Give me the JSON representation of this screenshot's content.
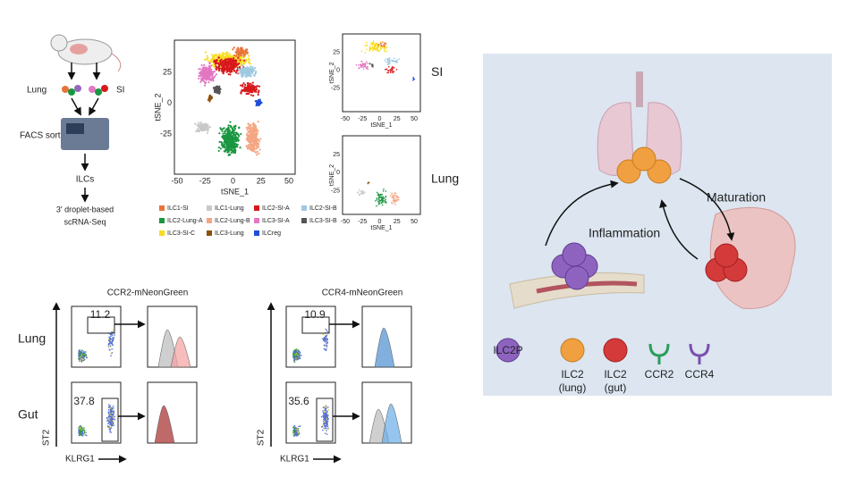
{
  "workflow": {
    "organs": [
      "Lung",
      "SI"
    ],
    "sort": "FACS sort",
    "cells": "ILCs",
    "method": [
      "3' droplet-based",
      "scRNA-Seq"
    ]
  },
  "tsne_main": {
    "x_label": "tSNE_1",
    "y_label": "tSNE_2",
    "x_ticks": [
      "-50",
      "-25",
      "0",
      "25",
      "50"
    ],
    "y_ticks": [
      "25",
      "0",
      "-25"
    ]
  },
  "tsne_si": {
    "label": "SI",
    "x_label": "tSNE_1",
    "y_label": "tSNE_2",
    "x_ticks": [
      "-50",
      "-25",
      "0",
      "25",
      "50"
    ],
    "y_ticks": [
      "25",
      "0",
      "-25"
    ]
  },
  "tsne_lung": {
    "label": "Lung",
    "x_label": "tSNE_1",
    "y_label": "tSNE_2",
    "x_ticks": [
      "-50",
      "-25",
      "0",
      "25",
      "50"
    ],
    "y_ticks": [
      "25",
      "0",
      "-25"
    ]
  },
  "legend": [
    {
      "name": "ILC1-SI",
      "color": "#e8743b"
    },
    {
      "name": "ILC1-Lung",
      "color": "#c8c8c8"
    },
    {
      "name": "ILC2-SI-A",
      "color": "#d7191c"
    },
    {
      "name": "ILC2-SI-B",
      "color": "#9ecae1"
    },
    {
      "name": "ILC2-Lung-A",
      "color": "#1a9641"
    },
    {
      "name": "ILC2-Lung-B",
      "color": "#f4a582"
    },
    {
      "name": "ILC3-SI-A",
      "color": "#e377c2"
    },
    {
      "name": "ILC3-SI-B",
      "color": "#555555"
    },
    {
      "name": "ILC3-SI-C",
      "color": "#f7dc1e"
    },
    {
      "name": "ILC3-Lung",
      "color": "#8c510a"
    },
    {
      "name": "ILCreg",
      "color": "#1f4fd6"
    }
  ],
  "flow": {
    "rows": [
      "Lung",
      "Gut"
    ],
    "x_label": "KLRG1",
    "y_label": "ST2",
    "panels": [
      {
        "title": "CCR2-mNeonGreen",
        "gates": [
          "11.2",
          "37.8"
        ]
      },
      {
        "title": "CCR4-mNeonGreen",
        "gates": [
          "10.9",
          "35.6"
        ]
      }
    ]
  },
  "schematic": {
    "maturation": "Maturation",
    "inflammation": "Inflammation",
    "key": [
      {
        "lines": [
          "ILC2P"
        ]
      },
      {
        "lines": [
          "ILC2",
          "(lung)"
        ]
      },
      {
        "lines": [
          "ILC2",
          "(gut)"
        ]
      },
      {
        "lines": [
          "CCR2"
        ]
      },
      {
        "lines": [
          "CCR4"
        ]
      }
    ]
  }
}
